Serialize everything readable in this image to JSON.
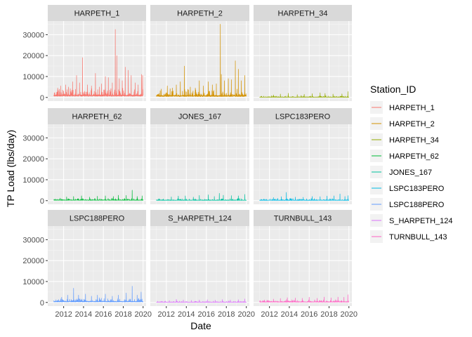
{
  "chart_data": {
    "type": "line",
    "title": "",
    "xlabel": "Date",
    "ylabel": "TP Load (lbs/day)",
    "xlim": [
      2010.4,
      2020.3
    ],
    "ylim": [
      -1750,
      36500
    ],
    "x_ticks": [
      2012,
      2014,
      2016,
      2018,
      2020
    ],
    "y_ticks": [
      0,
      10000,
      20000,
      30000
    ],
    "facet_layout": "3x3 grid, shared axes",
    "legend_title": "Station_ID",
    "legend_position": "right",
    "grid": true,
    "series": [
      {
        "name": "HARPETH_1",
        "color": "#F8766D",
        "range": [
          2011,
          2020
        ],
        "baseline": 900,
        "noise": 1800,
        "peaks": [
          [
            2011.4,
            4500
          ],
          [
            2011.7,
            5500
          ],
          [
            2012.2,
            6000
          ],
          [
            2012.5,
            5000
          ],
          [
            2012.9,
            7500
          ],
          [
            2013.3,
            10500
          ],
          [
            2013.6,
            7000
          ],
          [
            2013.9,
            19000
          ],
          [
            2014.4,
            6000
          ],
          [
            2014.8,
            5500
          ],
          [
            2015.2,
            11500
          ],
          [
            2015.6,
            5000
          ],
          [
            2015.8,
            6500
          ],
          [
            2016.2,
            10000
          ],
          [
            2016.5,
            9500
          ],
          [
            2016.9,
            7000
          ],
          [
            2017.2,
            32500
          ],
          [
            2017.35,
            20000
          ],
          [
            2017.6,
            9000
          ],
          [
            2017.9,
            8000
          ],
          [
            2018.2,
            14500
          ],
          [
            2018.5,
            13000
          ],
          [
            2018.8,
            10500
          ],
          [
            2019.2,
            7000
          ],
          [
            2019.5,
            6000
          ],
          [
            2019.85,
            11000
          ],
          [
            2019.95,
            10500
          ]
        ]
      },
      {
        "name": "HARPETH_2",
        "color": "#D39200",
        "range": [
          2011,
          2020
        ],
        "baseline": 700,
        "noise": 1500,
        "peaks": [
          [
            2011.5,
            4000
          ],
          [
            2012.1,
            5500
          ],
          [
            2012.6,
            4500
          ],
          [
            2013.0,
            6000
          ],
          [
            2013.4,
            7500
          ],
          [
            2013.8,
            15000
          ],
          [
            2014.4,
            5000
          ],
          [
            2014.9,
            4500
          ],
          [
            2015.3,
            8000
          ],
          [
            2015.7,
            5500
          ],
          [
            2016.2,
            7500
          ],
          [
            2016.6,
            6000
          ],
          [
            2017.0,
            6500
          ],
          [
            2017.4,
            35000
          ],
          [
            2017.5,
            11000
          ],
          [
            2017.8,
            8000
          ],
          [
            2018.2,
            9000
          ],
          [
            2018.5,
            8500
          ],
          [
            2018.9,
            17500
          ],
          [
            2019.2,
            13500
          ],
          [
            2019.5,
            8000
          ],
          [
            2019.85,
            10500
          ]
        ]
      },
      {
        "name": "HARPETH_34",
        "color": "#93AA00",
        "range": [
          2011,
          2020
        ],
        "baseline": 150,
        "noise": 350,
        "peaks": [
          [
            2012.4,
            1200
          ],
          [
            2013.1,
            1600
          ],
          [
            2013.9,
            2000
          ],
          [
            2014.8,
            1300
          ],
          [
            2015.5,
            1500
          ],
          [
            2016.3,
            1800
          ],
          [
            2017.1,
            2200
          ],
          [
            2017.6,
            1900
          ],
          [
            2018.4,
            1600
          ],
          [
            2019.3,
            1700
          ],
          [
            2019.9,
            2800
          ]
        ]
      },
      {
        "name": "HARPETH_62",
        "color": "#00BA38",
        "range": [
          2011,
          2020
        ],
        "baseline": 250,
        "noise": 500,
        "peaks": [
          [
            2012.3,
            1800
          ],
          [
            2013.0,
            2000
          ],
          [
            2013.8,
            2300
          ],
          [
            2014.6,
            1700
          ],
          [
            2015.4,
            2100
          ],
          [
            2016.2,
            2300
          ],
          [
            2017.0,
            2000
          ],
          [
            2017.5,
            2600
          ],
          [
            2018.3,
            2500
          ],
          [
            2018.9,
            5000
          ],
          [
            2019.4,
            2000
          ],
          [
            2019.9,
            2300
          ]
        ]
      },
      {
        "name": "JONES_167",
        "color": "#00C19F",
        "range": [
          2011,
          2020
        ],
        "baseline": 200,
        "noise": 450,
        "peaks": [
          [
            2012.5,
            1800
          ],
          [
            2013.2,
            2200
          ],
          [
            2013.9,
            2300
          ],
          [
            2014.7,
            1700
          ],
          [
            2015.3,
            2500
          ],
          [
            2016.2,
            2800
          ],
          [
            2016.8,
            2000
          ],
          [
            2017.3,
            3500
          ],
          [
            2017.7,
            2600
          ],
          [
            2018.5,
            2400
          ],
          [
            2019.2,
            2300
          ],
          [
            2019.85,
            3000
          ]
        ]
      },
      {
        "name": "LSPC183PERO",
        "color": "#00B9E3",
        "range": [
          2011,
          2020
        ],
        "baseline": 200,
        "noise": 450,
        "peaks": [
          [
            2012.4,
            1500
          ],
          [
            2013.2,
            1900
          ],
          [
            2013.7,
            3900
          ],
          [
            2014.6,
            1700
          ],
          [
            2015.4,
            1600
          ],
          [
            2016.3,
            2000
          ],
          [
            2017.1,
            1900
          ],
          [
            2017.8,
            2200
          ],
          [
            2018.5,
            2300
          ],
          [
            2019.1,
            3200
          ],
          [
            2019.6,
            2000
          ],
          [
            2019.9,
            2400
          ]
        ]
      },
      {
        "name": "LSPC188PERO",
        "color": "#619CFF",
        "range": [
          2011,
          2020
        ],
        "baseline": 400,
        "noise": 900,
        "peaks": [
          [
            2011.8,
            2500
          ],
          [
            2012.4,
            3500
          ],
          [
            2013.0,
            6800
          ],
          [
            2013.5,
            3500
          ],
          [
            2014.2,
            4000
          ],
          [
            2014.8,
            3000
          ],
          [
            2015.4,
            3500
          ],
          [
            2016.2,
            4000
          ],
          [
            2016.9,
            3000
          ],
          [
            2017.5,
            3500
          ],
          [
            2018.3,
            4500
          ],
          [
            2018.9,
            7800
          ],
          [
            2019.4,
            3500
          ],
          [
            2019.8,
            5000
          ]
        ]
      },
      {
        "name": "S_HARPETH_124",
        "color": "#DB72FB",
        "range": [
          2011,
          2020
        ],
        "baseline": 150,
        "noise": 300,
        "peaks": [
          [
            2012.3,
            900
          ],
          [
            2013.0,
            1500
          ],
          [
            2013.7,
            1200
          ],
          [
            2014.5,
            1000
          ],
          [
            2015.3,
            1200
          ],
          [
            2016.1,
            1300
          ],
          [
            2016.9,
            1100
          ],
          [
            2017.6,
            1400
          ],
          [
            2018.4,
            1200
          ],
          [
            2019.2,
            1300
          ],
          [
            2019.85,
            1700
          ]
        ]
      },
      {
        "name": "TURNBULL_143",
        "color": "#FF61C3",
        "range": [
          2011,
          2020
        ],
        "baseline": 250,
        "noise": 550,
        "peaks": [
          [
            2012.4,
            1600
          ],
          [
            2013.1,
            1900
          ],
          [
            2013.8,
            2300
          ],
          [
            2014.6,
            2100
          ],
          [
            2015.3,
            2000
          ],
          [
            2016.0,
            2500
          ],
          [
            2016.8,
            2000
          ],
          [
            2017.5,
            2600
          ],
          [
            2018.2,
            2200
          ],
          [
            2018.9,
            2600
          ],
          [
            2019.5,
            2500
          ],
          [
            2019.9,
            3700
          ]
        ]
      }
    ]
  }
}
